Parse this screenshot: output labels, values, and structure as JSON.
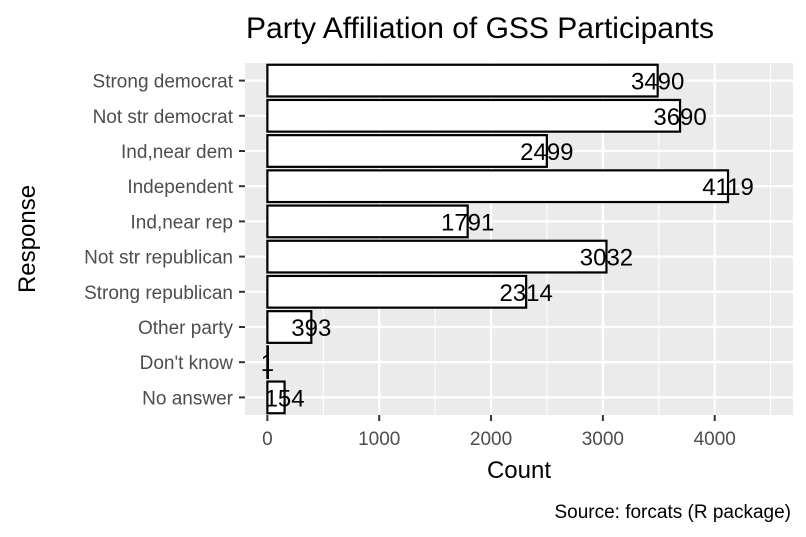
{
  "chart_data": {
    "type": "bar",
    "orientation": "horizontal",
    "title": "Party Affiliation of GSS Participants",
    "xlabel": "Count",
    "ylabel": "Response",
    "caption": "Source: forcats (R package)",
    "categories": [
      "Strong democrat",
      "Not str democrat",
      "Ind,near dem",
      "Independent",
      "Ind,near rep",
      "Not str republican",
      "Strong republican",
      "Other party",
      "Don't know",
      "No answer"
    ],
    "values": [
      3490,
      3690,
      2499,
      4119,
      1791,
      3032,
      2314,
      393,
      1,
      154
    ],
    "xlim": [
      -200,
      4700
    ],
    "xticks": [
      "0",
      "1000",
      "2000",
      "3000",
      "4000"
    ],
    "grid": true,
    "colors": {
      "panel": "#ebebeb",
      "grid": "#ffffff",
      "bar_fill": "#ffffff",
      "bar_outline": "#000000"
    }
  }
}
